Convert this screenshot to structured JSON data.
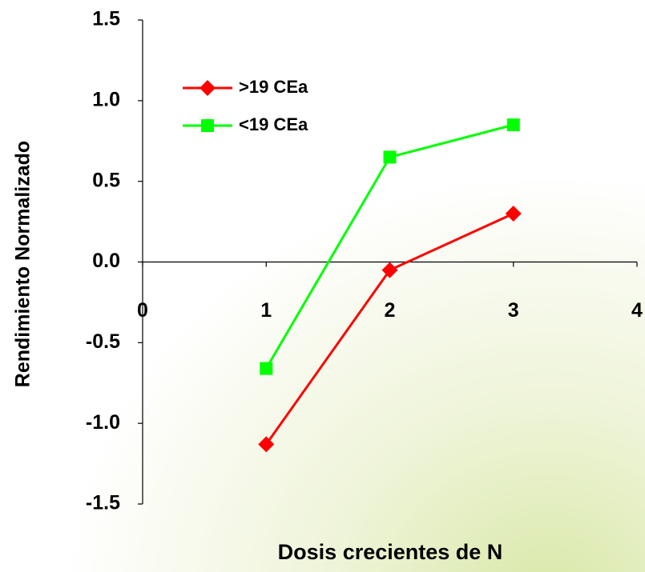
{
  "chart_data": {
    "type": "line",
    "x_label": "Dosis crecientes de N",
    "y_label": "Rendimiento Normalizado",
    "x": [
      1,
      2,
      3
    ],
    "series": [
      {
        "name": ">19 CEa",
        "color": "#ff0000",
        "marker": "diamond",
        "values": [
          -1.13,
          -0.05,
          0.3
        ]
      },
      {
        "name": "<19 CEa",
        "color": "#00ff00",
        "marker": "square",
        "values": [
          -0.66,
          0.65,
          0.85
        ]
      }
    ],
    "xlim": [
      0,
      4
    ],
    "xticks": [
      0,
      1,
      2,
      3,
      4
    ],
    "ylim": [
      -1.5,
      1.5
    ],
    "yticks": [
      -1.5,
      {
        "value": -1,
        "label": "-1.0"
      },
      -0.5,
      {
        "value": 0,
        "label": "0.0"
      },
      0.5,
      {
        "value": 1,
        "label": "1.0"
      },
      1.5
    ],
    "legend": "upper left"
  }
}
